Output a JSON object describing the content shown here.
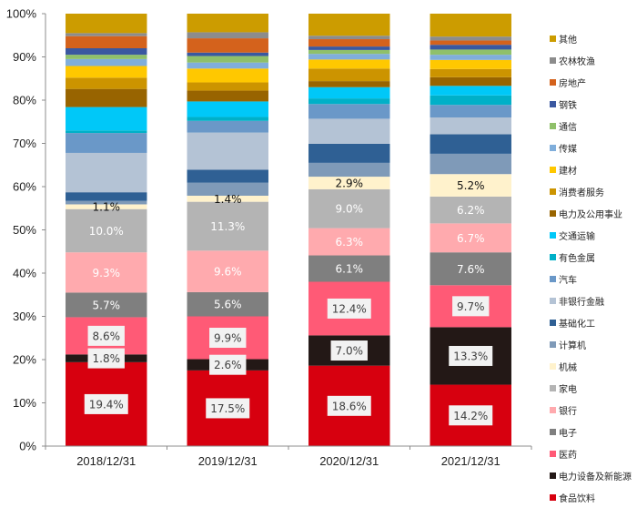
{
  "chart_data": {
    "type": "bar",
    "stacked": true,
    "title": "",
    "xlabel": "",
    "ylabel": "",
    "ylim": [
      0,
      100
    ],
    "yticks": [
      "0%",
      "10%",
      "20%",
      "30%",
      "40%",
      "50%",
      "60%",
      "70%",
      "80%",
      "90%",
      "100%"
    ],
    "categories": [
      "2018/12/31",
      "2019/12/31",
      "2020/12/31",
      "2021/12/31"
    ],
    "legend_position": "right",
    "series": [
      {
        "name": "食品饮料",
        "color": "#D7000F",
        "values": [
          19.4,
          17.5,
          18.6,
          14.2
        ],
        "labels": [
          "19.4%",
          "17.5%",
          "18.6%",
          "14.2%"
        ],
        "label_style": "boxed"
      },
      {
        "name": "电力设备及新能源",
        "color": "#231816",
        "values": [
          1.8,
          2.6,
          7.0,
          13.3
        ],
        "labels": [
          "1.8%",
          "2.6%",
          "7.0%",
          "13.3%"
        ],
        "label_style": "boxed"
      },
      {
        "name": "医药",
        "color": "#FF5A76",
        "values": [
          8.6,
          9.9,
          12.4,
          9.7
        ],
        "labels": [
          "8.6%",
          "9.9%",
          "12.4%",
          "9.7%"
        ],
        "label_style": "boxed"
      },
      {
        "name": "电子",
        "color": "#7F7F7F",
        "values": [
          5.7,
          5.6,
          6.1,
          7.6
        ],
        "labels": [
          "5.7%",
          "5.6%",
          "6.1%",
          "7.6%"
        ],
        "label_style": "white"
      },
      {
        "name": "银行",
        "color": "#FFAAAE",
        "values": [
          9.3,
          9.6,
          6.3,
          6.7
        ],
        "labels": [
          "9.3%",
          "9.6%",
          "6.3%",
          "6.7%"
        ],
        "label_style": "white"
      },
      {
        "name": "家电",
        "color": "#B4B4B4",
        "values": [
          10.0,
          11.3,
          9.0,
          6.2
        ],
        "labels": [
          "10.0%",
          "11.3%",
          "9.0%",
          "6.2%"
        ],
        "label_style": "white"
      },
      {
        "name": "机械",
        "color": "#FFF2CC",
        "values": [
          1.1,
          1.4,
          2.9,
          5.2
        ],
        "labels": [
          "1.1%",
          "1.4%",
          "2.9%",
          "5.2%"
        ],
        "label_style": "dark"
      },
      {
        "name": "计算机",
        "color": "#7F9AB8",
        "values": [
          0.8,
          3.0,
          3.2,
          4.7
        ]
      },
      {
        "name": "基础化工",
        "color": "#2F6094",
        "values": [
          2.0,
          3.0,
          4.4,
          4.5
        ]
      },
      {
        "name": "非银行金融",
        "color": "#B4C3D5",
        "values": [
          9.1,
          8.6,
          5.8,
          3.9
        ]
      },
      {
        "name": "汽车",
        "color": "#6A98C8",
        "values": [
          4.6,
          2.7,
          3.4,
          2.9
        ]
      },
      {
        "name": "有色金属",
        "color": "#00B0C8",
        "values": [
          0.6,
          0.9,
          1.3,
          2.2
        ]
      },
      {
        "name": "交通运输",
        "color": "#00C8F8",
        "values": [
          5.4,
          3.6,
          2.6,
          2.2
        ]
      },
      {
        "name": "电力及公用事业",
        "color": "#986400",
        "values": [
          4.2,
          2.5,
          1.4,
          2.0
        ]
      },
      {
        "name": "消费者服务",
        "color": "#CC9400",
        "values": [
          2.6,
          1.9,
          2.9,
          1.9
        ]
      },
      {
        "name": "建材",
        "color": "#FFC800",
        "values": [
          2.7,
          3.2,
          2.1,
          2.1
        ]
      },
      {
        "name": "传媒",
        "color": "#80AEDB",
        "values": [
          1.6,
          1.4,
          1.3,
          1.2
        ]
      },
      {
        "name": "通信",
        "color": "#8FC06A",
        "values": [
          1.0,
          1.5,
          0.9,
          1.2
        ]
      },
      {
        "name": "钢铁",
        "color": "#3A58A0",
        "values": [
          1.5,
          0.8,
          0.8,
          1.1
        ]
      },
      {
        "name": "房地产",
        "color": "#D4621C",
        "values": [
          2.8,
          3.3,
          1.7,
          1.0
        ]
      },
      {
        "name": "农林牧渔",
        "color": "#8C8C8C",
        "values": [
          0.7,
          1.4,
          0.8,
          0.9
        ]
      },
      {
        "name": "其他",
        "color": "#CC9C00",
        "values": [
          4.5,
          4.3,
          5.1,
          5.3
        ]
      }
    ]
  }
}
